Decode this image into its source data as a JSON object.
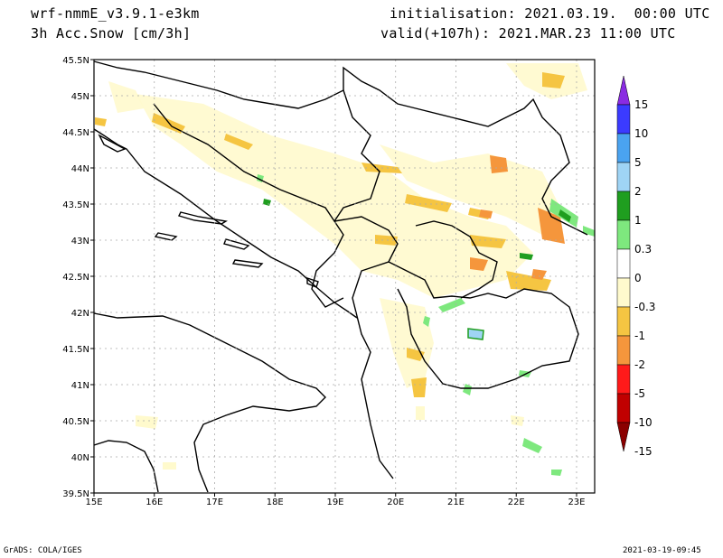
{
  "header": {
    "model": "wrf-nmmE_v3.9.1-e3km",
    "variable": "3h Acc.Snow [cm/3h]",
    "init": "initialisation: 2021.03.19.  00:00 UTC",
    "valid": "valid(+107h): 2021.MAR.23 11:00 UTC"
  },
  "map": {
    "lon_ticks": [
      "15E",
      "16E",
      "17E",
      "18E",
      "19E",
      "20E",
      "21E",
      "22E",
      "23E"
    ],
    "lat_ticks": [
      "39.5N",
      "40N",
      "40.5N",
      "41N",
      "41.5N",
      "42N",
      "42.5N",
      "43N",
      "43.5N",
      "44N",
      "44.5N",
      "45N",
      "45.5N"
    ],
    "lon_range": [
      15,
      23.3
    ],
    "lat_range": [
      39.5,
      45.5
    ],
    "grid": true
  },
  "colorbar": {
    "labels": [
      "15",
      "10",
      "5",
      "2",
      "1",
      "0.3",
      "0",
      "-0.3",
      "-1",
      "-2",
      "-5",
      "-10",
      "-15"
    ],
    "colors": [
      "#8a2be2",
      "#3b3bff",
      "#4aa3f0",
      "#9fd4f5",
      "#1f9e1f",
      "#7ee87e",
      "#ffffff",
      "#fffacd",
      "#f5c542",
      "#f5963c",
      "#ff1a1a",
      "#c00000",
      "#8b0000"
    ]
  },
  "footer": {
    "left": "GrADS: COLA/IGES",
    "right": "2021-03-19-09:45"
  }
}
